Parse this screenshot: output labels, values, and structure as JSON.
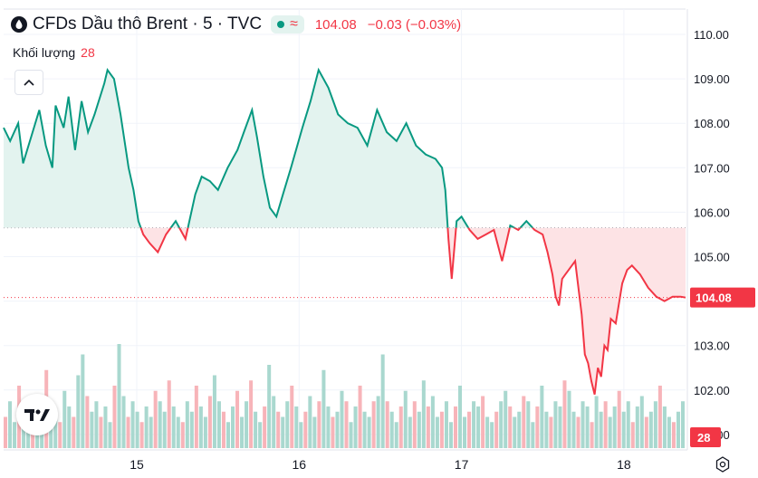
{
  "header": {
    "title": "CFDs Dầu thô Brent · 5 · TVC",
    "wave_symbol": "≈",
    "last_price": "104.08",
    "change": "−0.03 (−0.03%)"
  },
  "volume_legend": {
    "label": "Khối lượng",
    "value": "28"
  },
  "colors": {
    "up": "#089981",
    "down": "#f23645",
    "up_fill": "#e3f3ef",
    "down_fill": "#fde3e5"
  },
  "icons": {
    "collapse": "chevron-up-icon",
    "logo": "tradingview-logo-icon",
    "settings": "gear-icon",
    "symbol": "droplet-icon"
  },
  "chart_data": {
    "type": "area",
    "baseline": 105.65,
    "last_price_label": "104.08",
    "volume_label": "28",
    "ylim": [
      101.0,
      110.3
    ],
    "y_ticks": [
      "110.00",
      "109.00",
      "108.00",
      "107.00",
      "106.00",
      "105.00",
      "104.00",
      "103.00",
      "102.00",
      "101.00"
    ],
    "x_ticks": [
      {
        "label": "15",
        "x": 15.0
      },
      {
        "label": "16",
        "x": 16.0
      },
      {
        "label": "17",
        "x": 17.0
      },
      {
        "label": "18",
        "x": 18.0
      }
    ],
    "series": [
      {
        "x": [
          14.18,
          14.22,
          14.27,
          14.3,
          14.35,
          14.4,
          14.44,
          14.48,
          14.5,
          14.55,
          14.58,
          14.62,
          14.66,
          14.7,
          14.74,
          14.8,
          14.82,
          14.86,
          14.9,
          14.95,
          14.98,
          15.01,
          15.04,
          15.08,
          15.13,
          15.18,
          15.24,
          15.3,
          15.36,
          15.4,
          15.45,
          15.5,
          15.56,
          15.62,
          15.66,
          15.71,
          15.74,
          15.78,
          15.82,
          15.86,
          15.9,
          15.95,
          16.02,
          16.07,
          16.12,
          16.18,
          16.24,
          16.3,
          16.36,
          16.42,
          16.48,
          16.54,
          16.6,
          16.66,
          16.72,
          16.78,
          16.84,
          16.88,
          16.9,
          16.92,
          16.94,
          16.97,
          17.0,
          17.05,
          17.1,
          17.15,
          17.2,
          17.25,
          17.3,
          17.35,
          17.4,
          17.45,
          17.5,
          17.53,
          17.56,
          17.58,
          17.6,
          17.62,
          17.64,
          17.66,
          17.7,
          17.72,
          17.74,
          17.76,
          17.78,
          17.8,
          17.82,
          17.84,
          17.86,
          17.88,
          17.9,
          17.92,
          17.95,
          17.99,
          18.02,
          18.05,
          18.1,
          18.15,
          18.2,
          18.25,
          18.3,
          18.35,
          18.38
        ],
        "y": [
          107.9,
          107.6,
          108.0,
          107.1,
          107.7,
          108.3,
          107.5,
          107.0,
          108.4,
          107.9,
          108.6,
          107.4,
          108.5,
          107.8,
          108.2,
          108.9,
          109.2,
          109.0,
          108.2,
          107.0,
          106.5,
          105.8,
          105.5,
          105.3,
          105.1,
          105.5,
          105.8,
          105.4,
          106.4,
          106.8,
          106.7,
          106.5,
          107.0,
          107.4,
          107.8,
          108.3,
          107.7,
          106.8,
          106.1,
          105.9,
          106.4,
          107.0,
          107.9,
          108.5,
          109.2,
          108.8,
          108.2,
          108.0,
          107.9,
          107.5,
          108.3,
          107.8,
          107.6,
          108.0,
          107.5,
          107.3,
          107.2,
          107.0,
          106.5,
          105.4,
          104.5,
          105.8,
          105.9,
          105.6,
          105.4,
          105.5,
          105.6,
          104.9,
          105.7,
          105.6,
          105.8,
          105.6,
          105.5,
          105.1,
          104.6,
          104.1,
          103.9,
          104.5,
          104.6,
          104.7,
          104.9,
          104.3,
          103.7,
          102.8,
          102.6,
          102.2,
          101.9,
          102.5,
          102.3,
          103.0,
          102.9,
          103.6,
          103.5,
          104.4,
          104.7,
          104.8,
          104.6,
          104.3,
          104.1,
          104.0,
          104.1,
          104.1,
          104.08
        ]
      }
    ],
    "volume": [
      6,
      9,
      5,
      12,
      7,
      4,
      8,
      10,
      6,
      15,
      9,
      7,
      5,
      11,
      8,
      6,
      14,
      18,
      10,
      7,
      9,
      6,
      8,
      5,
      12,
      20,
      10,
      6,
      9,
      7,
      5,
      8,
      6,
      11,
      9,
      7,
      13,
      8,
      6,
      5,
      9,
      7,
      12,
      8,
      6,
      10,
      14,
      9,
      7,
      5,
      8,
      11,
      6,
      9,
      13,
      7,
      5,
      8,
      16,
      10,
      7,
      6,
      9,
      12,
      8,
      5,
      7,
      10,
      6,
      9,
      15,
      8,
      6,
      7,
      11,
      9,
      5,
      8,
      12,
      7,
      6,
      9,
      10,
      18,
      9,
      7,
      5,
      8,
      11,
      6,
      9,
      7,
      13,
      8,
      10,
      6,
      7,
      9,
      5,
      8,
      12,
      6,
      7,
      9,
      8,
      10,
      6,
      5,
      7,
      9,
      11,
      8,
      6,
      7,
      10,
      9,
      5,
      8,
      12,
      7,
      6,
      9,
      8,
      13,
      11,
      7,
      6,
      9,
      8,
      5,
      10,
      7,
      9,
      6,
      8,
      11,
      7,
      9,
      5,
      8,
      10,
      6,
      7,
      9,
      12,
      8,
      6,
      5,
      7,
      9
    ]
  }
}
